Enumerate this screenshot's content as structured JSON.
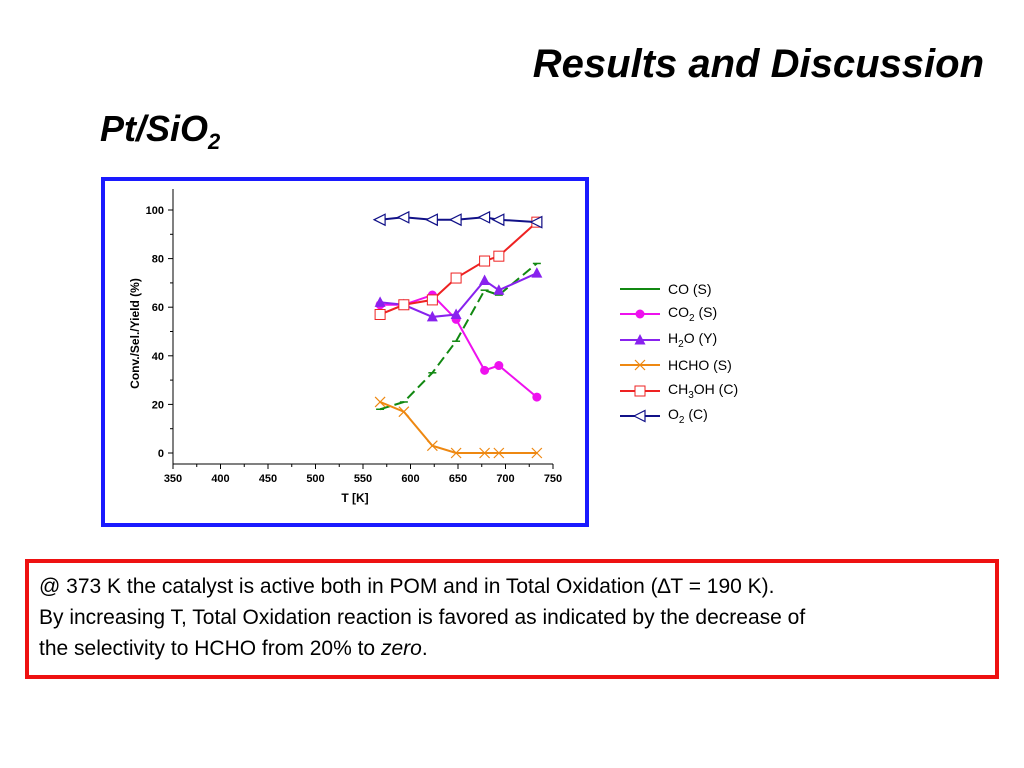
{
  "slide": {
    "title": "Results and Discussion",
    "subtitle_main": "Pt/SiO",
    "subtitle_sub": "2"
  },
  "note": {
    "line1": "@ 373 K the catalyst is active both in POM and in Total Oxidation (∆T = 190 K).",
    "line2": "By increasing T, Total Oxidation reaction is favored as indicated by the decrease of",
    "line3_prefix": "the selectivity to HCHO from 20% to ",
    "line3_italic": "zero",
    "line3_suffix": "."
  },
  "colors": {
    "frame": "#1a1aff",
    "note_border": "#ee1111"
  },
  "chart_data": {
    "type": "line",
    "title": "",
    "xlabel": "T [K]",
    "ylabel": "Conv./Sel./Yield (%)",
    "xlim": [
      350,
      750
    ],
    "ylim": [
      0,
      100
    ],
    "xticks": [
      350,
      400,
      450,
      500,
      550,
      600,
      650,
      700,
      750
    ],
    "yticks": [
      0,
      20,
      40,
      60,
      80,
      100
    ],
    "grid": false,
    "legend_position": "right",
    "series": [
      {
        "key": "co",
        "label_main": "CO",
        "label_sub": "",
        "label_rest": " (S)",
        "color": "#118811",
        "marker": "dash",
        "x": [
          568,
          593,
          623,
          648,
          678,
          693,
          733
        ],
        "y": [
          18,
          21,
          33,
          46,
          67,
          65,
          78
        ]
      },
      {
        "key": "co2",
        "label_main": "CO",
        "label_sub": "2",
        "label_rest": " (S)",
        "color": "#ee11ee",
        "marker": "circle",
        "x": [
          568,
          593,
          623,
          648,
          678,
          693,
          733
        ],
        "y": [
          61,
          61,
          65,
          55,
          34,
          36,
          23
        ]
      },
      {
        "key": "h2o",
        "label_main": "H",
        "label_sub": "2",
        "label_rest": "O (Y)",
        "color": "#8822ee",
        "marker": "triangle",
        "x": [
          568,
          593,
          623,
          648,
          678,
          693,
          733
        ],
        "y": [
          62,
          61,
          56,
          57,
          71,
          67,
          74
        ]
      },
      {
        "key": "hcho",
        "label_main": "HCHO",
        "label_sub": "",
        "label_rest": " (S)",
        "color": "#ee8811",
        "marker": "x",
        "x": [
          568,
          593,
          623,
          648,
          678,
          693,
          733
        ],
        "y": [
          21,
          17,
          3,
          0,
          0,
          0,
          0
        ]
      },
      {
        "key": "ch3oh",
        "label_main": "CH",
        "label_sub": "3",
        "label_rest": "OH (C)",
        "color": "#ee2222",
        "marker": "square",
        "x": [
          568,
          593,
          623,
          648,
          678,
          693,
          733
        ],
        "y": [
          57,
          61,
          63,
          72,
          79,
          81,
          95
        ]
      },
      {
        "key": "o2",
        "label_main": "O",
        "label_sub": "2",
        "label_rest": " (C)",
        "color": "#111188",
        "marker": "triangle-left",
        "x": [
          568,
          593,
          623,
          648,
          678,
          693,
          733
        ],
        "y": [
          96,
          97,
          96,
          96,
          97,
          96,
          95
        ]
      }
    ]
  }
}
